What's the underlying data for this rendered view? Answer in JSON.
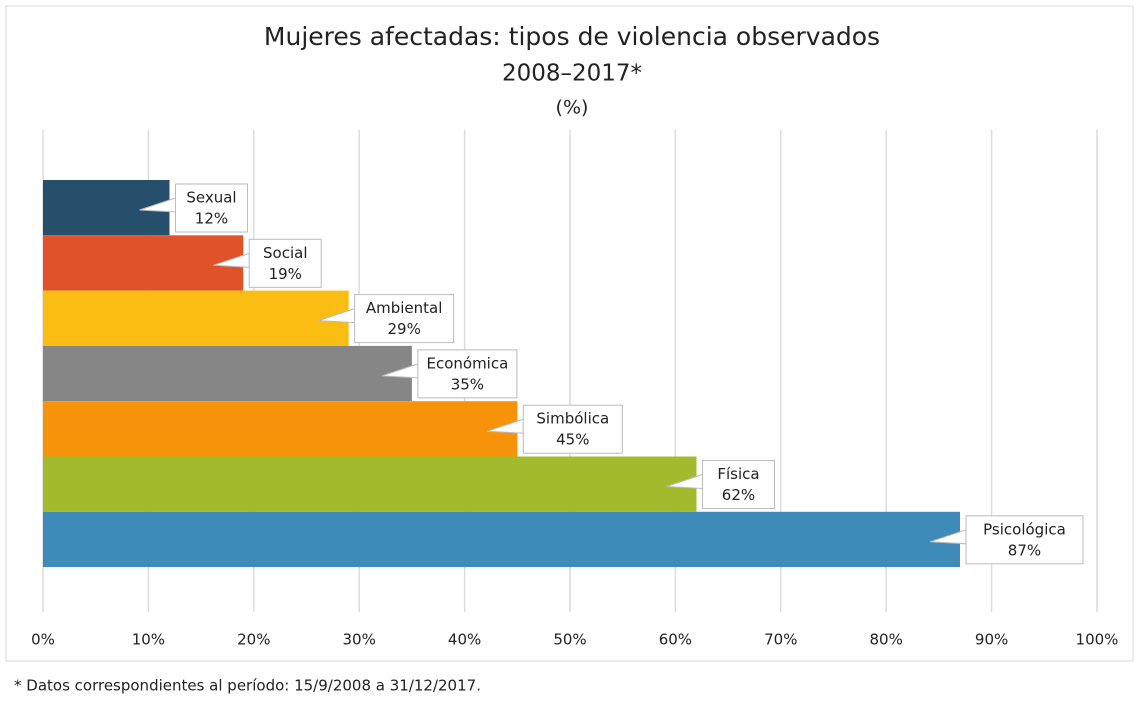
{
  "chart_data": {
    "type": "barh",
    "title": "Mujeres afectadas: tipos de violencia observados",
    "subtitle": "2008–2017*",
    "unit": "(%)",
    "footnote": "* Datos correspondientes al período: 15/9/2008 a 31/12/2017.",
    "categories": [
      "Sexual",
      "Social",
      "Ambiental",
      "Económica",
      "Simbólica",
      "Física",
      "Psicológica"
    ],
    "values": [
      12,
      19,
      29,
      35,
      45,
      62,
      87
    ],
    "value_labels": [
      "12%",
      "19%",
      "29%",
      "35%",
      "45%",
      "62%",
      "87%"
    ],
    "colors": [
      "#264f6b",
      "#e0522a",
      "#fbbd12",
      "#868686",
      "#f7930a",
      "#a4ba2d",
      "#3e8ab9"
    ],
    "xlim": [
      0,
      100
    ],
    "xticks": [
      {
        "value": 0,
        "label": "0%"
      },
      {
        "value": 10,
        "label": "10%"
      },
      {
        "value": 20,
        "label": "20%"
      },
      {
        "value": 30,
        "label": "30%"
      },
      {
        "value": 40,
        "label": "40%"
      },
      {
        "value": 50,
        "label": "50%"
      },
      {
        "value": 60,
        "label": "60%"
      },
      {
        "value": 70,
        "label": "70%"
      },
      {
        "value": 80,
        "label": "80%"
      },
      {
        "value": 90,
        "label": "90%"
      },
      {
        "value": 100,
        "label": "100%"
      }
    ],
    "grid": true
  }
}
